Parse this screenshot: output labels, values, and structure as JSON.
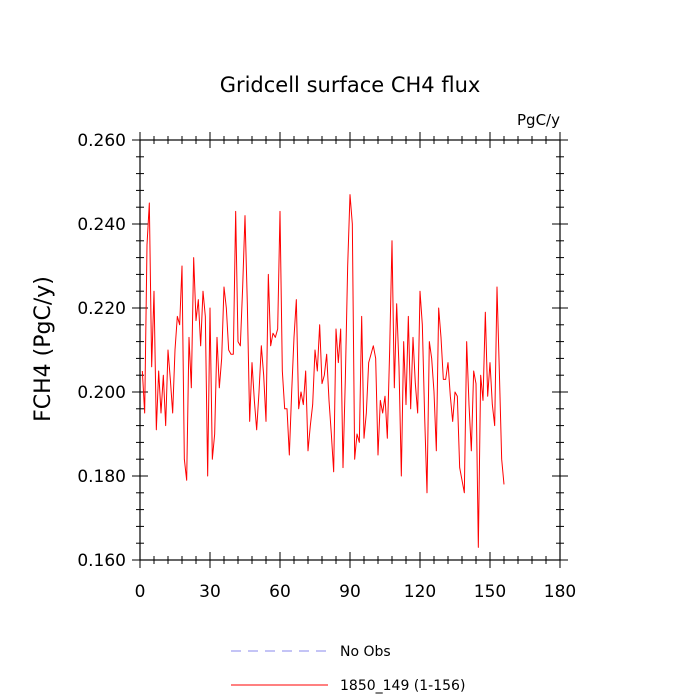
{
  "chart_data": {
    "type": "line",
    "title": "Gridcell surface CH4 flux",
    "units": "PgC/y",
    "xlabel": "",
    "ylabel": "FCH4  (PgC/y)",
    "xlim": [
      0,
      180
    ],
    "ylim": [
      0.16,
      0.26
    ],
    "xticks": [
      0,
      30,
      60,
      90,
      120,
      150,
      180
    ],
    "xtick_labels": [
      "0",
      "30",
      "60",
      "90",
      "120",
      "150",
      "180"
    ],
    "yticks": [
      0.16,
      0.18,
      0.2,
      0.22,
      0.24,
      0.26
    ],
    "ytick_labels": [
      "0.160",
      "0.180",
      "0.200",
      "0.220",
      "0.240",
      "0.260"
    ],
    "grid": false,
    "legend_position": "bottom",
    "series": [
      {
        "name": "No Obs",
        "color": "#8888ee",
        "dash": "dashed",
        "x": [],
        "values": []
      },
      {
        "name": "1850_149 (1-156)",
        "color": "#ff0000",
        "dash": "solid",
        "x": [
          1,
          2,
          3,
          4,
          5,
          6,
          7,
          8,
          9,
          10,
          11,
          12,
          13,
          14,
          15,
          16,
          17,
          18,
          19,
          20,
          21,
          22,
          23,
          24,
          25,
          26,
          27,
          28,
          29,
          30,
          31,
          32,
          33,
          34,
          35,
          36,
          37,
          38,
          39,
          40,
          41,
          42,
          43,
          44,
          45,
          46,
          47,
          48,
          49,
          50,
          51,
          52,
          53,
          54,
          55,
          56,
          57,
          58,
          59,
          60,
          61,
          62,
          63,
          64,
          65,
          66,
          67,
          68,
          69,
          70,
          71,
          72,
          73,
          74,
          75,
          76,
          77,
          78,
          79,
          80,
          81,
          82,
          83,
          84,
          85,
          86,
          87,
          88,
          89,
          90,
          91,
          92,
          93,
          94,
          95,
          96,
          97,
          98,
          99,
          100,
          101,
          102,
          103,
          104,
          105,
          106,
          107,
          108,
          109,
          110,
          111,
          112,
          113,
          114,
          115,
          116,
          117,
          118,
          119,
          120,
          121,
          122,
          123,
          124,
          125,
          126,
          127,
          128,
          129,
          130,
          131,
          132,
          133,
          134,
          135,
          136,
          137,
          138,
          139,
          140,
          141,
          142,
          143,
          144,
          145,
          146,
          147,
          148,
          149,
          150,
          151,
          152,
          153,
          154,
          155,
          156
        ],
        "values": [
          0.205,
          0.195,
          0.235,
          0.245,
          0.206,
          0.224,
          0.191,
          0.205,
          0.195,
          0.204,
          0.192,
          0.21,
          0.203,
          0.195,
          0.21,
          0.218,
          0.216,
          0.23,
          0.184,
          0.179,
          0.213,
          0.201,
          0.232,
          0.217,
          0.222,
          0.211,
          0.224,
          0.218,
          0.18,
          0.22,
          0.184,
          0.19,
          0.213,
          0.201,
          0.208,
          0.225,
          0.22,
          0.21,
          0.209,
          0.209,
          0.243,
          0.212,
          0.211,
          0.225,
          0.242,
          0.221,
          0.193,
          0.207,
          0.198,
          0.191,
          0.2,
          0.211,
          0.204,
          0.193,
          0.228,
          0.211,
          0.214,
          0.213,
          0.215,
          0.243,
          0.205,
          0.196,
          0.196,
          0.185,
          0.2,
          0.213,
          0.222,
          0.196,
          0.2,
          0.197,
          0.205,
          0.186,
          0.192,
          0.197,
          0.21,
          0.205,
          0.216,
          0.202,
          0.204,
          0.209,
          0.198,
          0.19,
          0.181,
          0.215,
          0.207,
          0.215,
          0.182,
          0.203,
          0.23,
          0.247,
          0.24,
          0.184,
          0.19,
          0.188,
          0.218,
          0.189,
          0.195,
          0.207,
          0.209,
          0.211,
          0.208,
          0.185,
          0.198,
          0.195,
          0.199,
          0.189,
          0.21,
          0.236,
          0.201,
          0.221,
          0.206,
          0.18,
          0.212,
          0.197,
          0.218,
          0.196,
          0.213,
          0.202,
          0.195,
          0.224,
          0.216,
          0.194,
          0.176,
          0.212,
          0.208,
          0.2,
          0.186,
          0.22,
          0.213,
          0.203,
          0.203,
          0.207,
          0.199,
          0.193,
          0.2,
          0.199,
          0.182,
          0.179,
          0.176,
          0.212,
          0.197,
          0.186,
          0.205,
          0.202,
          0.163,
          0.204,
          0.198,
          0.219,
          0.199,
          0.207,
          0.197,
          0.192,
          0.225,
          0.205,
          0.184,
          0.178
        ]
      }
    ]
  }
}
